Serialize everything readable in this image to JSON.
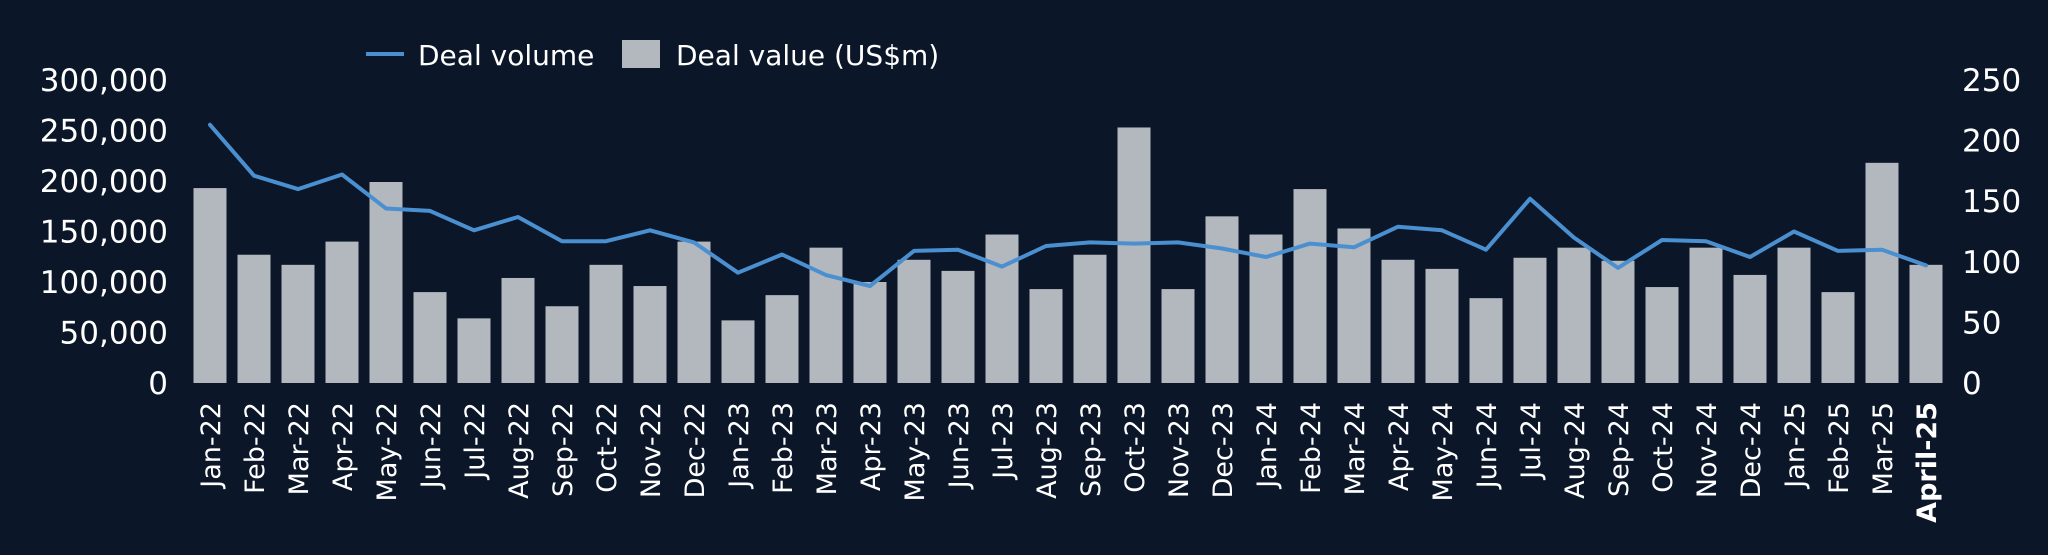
{
  "chart_data": {
    "type": "bar",
    "colors": {
      "background": "#0b1628",
      "bar": "#b3b8bf",
      "line": "#4a90d0",
      "text": "#ffffff",
      "axis": "#ffffff"
    },
    "legend": {
      "placement": "top-center",
      "line_label": "Deal volume",
      "bar_label": "Deal value (US$m)"
    },
    "grid": false,
    "categories": [
      "Jan-22",
      "Feb-22",
      "Mar-22",
      "Apr-22",
      "May-22",
      "Jun-22",
      "Jul-22",
      "Aug-22",
      "Sep-22",
      "Oct-22",
      "Nov-22",
      "Dec-22",
      "Jan-23",
      "Feb-23",
      "Mar-23",
      "Apr-23",
      "May-23",
      "Jun-23",
      "Jul-23",
      "Aug-23",
      "Sep-23",
      "Oct-23",
      "Nov-23",
      "Dec-23",
      "Jan-24",
      "Feb-24",
      "Mar-24",
      "Apr-24",
      "May-24",
      "Jun-24",
      "Jul-24",
      "Aug-24",
      "Sep-24",
      "Oct-24",
      "Nov-24",
      "Dec-24",
      "Jan-25",
      "Feb-25",
      "Mar-25",
      "April-25"
    ],
    "left_axis": {
      "min": 0,
      "max": 300000,
      "ticks": [
        0,
        50000,
        100000,
        150000,
        200000,
        250000,
        300000
      ],
      "tick_labels": [
        "0",
        "50,000",
        "100,000",
        "150,000",
        "200,000",
        "250,000",
        "300,000"
      ]
    },
    "right_axis": {
      "min": 0,
      "max": 250,
      "ticks": [
        0,
        50,
        100,
        150,
        200,
        250
      ],
      "tick_labels": [
        "0",
        "50",
        "100",
        "150",
        "200",
        "250"
      ]
    },
    "series": [
      {
        "name": "Deal value (US$m)",
        "kind": "bar",
        "axis": "left",
        "values": [
          193000,
          127000,
          117000,
          140000,
          199000,
          90000,
          64000,
          104000,
          76000,
          117000,
          96000,
          140000,
          62000,
          87000,
          134000,
          100000,
          122000,
          111000,
          147000,
          93000,
          127000,
          253000,
          93000,
          165000,
          147000,
          192000,
          153000,
          122000,
          113000,
          84000,
          124000,
          134000,
          121000,
          95000,
          134000,
          107000,
          134000,
          90000,
          218000,
          117000
        ]
      },
      {
        "name": "Deal volume",
        "kind": "line",
        "axis": "right",
        "values": [
          213,
          171,
          160,
          172,
          144,
          142,
          126,
          137,
          117,
          117,
          126,
          116,
          91,
          106,
          89,
          80,
          109,
          110,
          96,
          113,
          116,
          115,
          116,
          111,
          104,
          115,
          112,
          129,
          126,
          110,
          152,
          120,
          95,
          118,
          117,
          104,
          125,
          109,
          110,
          97
        ]
      }
    ]
  }
}
